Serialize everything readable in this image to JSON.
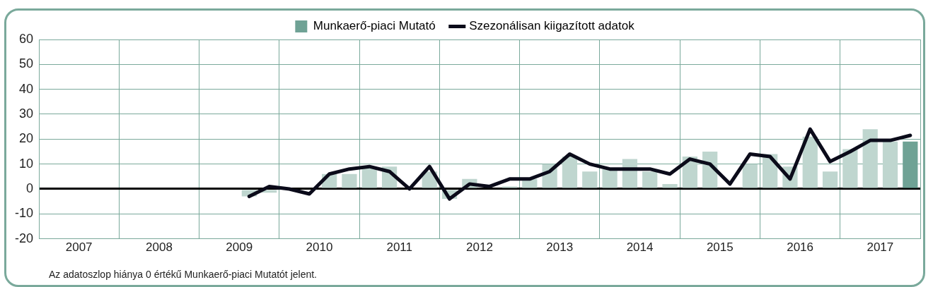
{
  "chart_data": {
    "type": "bar",
    "xlim": [
      2007,
      2018
    ],
    "xticks": [
      {
        "value": 2007,
        "label": null
      },
      {
        "value": 2007.5,
        "label": "2007"
      },
      {
        "value": 2008,
        "label": null
      },
      {
        "value": 2008.5,
        "label": "2008"
      },
      {
        "value": 2009,
        "label": null
      },
      {
        "value": 2009.5,
        "label": "2009"
      },
      {
        "value": 2010,
        "label": null
      },
      {
        "value": 2010.5,
        "label": "2010"
      },
      {
        "value": 2011,
        "label": null
      },
      {
        "value": 2011.5,
        "label": "2011"
      },
      {
        "value": 2012,
        "label": null
      },
      {
        "value": 2012.5,
        "label": "2012"
      },
      {
        "value": 2013,
        "label": null
      },
      {
        "value": 2013.5,
        "label": "2013"
      },
      {
        "value": 2014,
        "label": null
      },
      {
        "value": 2014.5,
        "label": "2014"
      },
      {
        "value": 2015,
        "label": null
      },
      {
        "value": 2015.5,
        "label": "2015"
      },
      {
        "value": 2016,
        "label": null
      },
      {
        "value": 2016.5,
        "label": "2016"
      },
      {
        "value": 2017,
        "label": null
      },
      {
        "value": 2017.5,
        "label": "2017"
      },
      {
        "value": 2018,
        "label": null
      }
    ],
    "ylim": [
      -20,
      60
    ],
    "yticks": [
      -20,
      -10,
      0,
      10,
      20,
      30,
      40,
      50,
      60
    ],
    "grid": true,
    "legend": "top",
    "series": [
      {
        "name": "Munkaerő-piaci Mutató",
        "color": "#6fa295",
        "x": [
          2009.625,
          2009.875,
          2010.125,
          2010.375,
          2010.625,
          2010.875,
          2011.125,
          2011.375,
          2011.625,
          2011.875,
          2012.125,
          2012.375,
          2012.625,
          2012.875,
          2013.125,
          2013.375,
          2013.625,
          2013.875,
          2014.125,
          2014.375,
          2014.625,
          2014.875,
          2015.125,
          2015.375,
          2015.625,
          2015.875,
          2016.125,
          2016.375,
          2016.625,
          2016.875,
          2017.125,
          2017.375,
          2017.625,
          2017.875
        ],
        "values": [
          -3,
          -1.5,
          0,
          0,
          6,
          6,
          9,
          9,
          0,
          7,
          -4,
          4,
          0,
          1,
          4,
          10,
          13,
          7,
          8,
          12,
          7,
          2,
          13,
          15,
          0,
          10,
          14,
          9,
          21,
          7,
          16,
          24,
          19,
          19
        ],
        "colors": [
          "#bfd6cf",
          "#bfd6cf",
          "#bfd6cf",
          "#bfd6cf",
          "#bfd6cf",
          "#bfd6cf",
          "#bfd6cf",
          "#bfd6cf",
          "#bfd6cf",
          "#bfd6cf",
          "#bfd6cf",
          "#bfd6cf",
          "#bfd6cf",
          "#bfd6cf",
          "#bfd6cf",
          "#bfd6cf",
          "#bfd6cf",
          "#bfd6cf",
          "#bfd6cf",
          "#bfd6cf",
          "#bfd6cf",
          "#bfd6cf",
          "#bfd6cf",
          "#bfd6cf",
          "#bfd6cf",
          "#bfd6cf",
          "#bfd6cf",
          "#bfd6cf",
          "#bfd6cf",
          "#bfd6cf",
          "#bfd6cf",
          "#bfd6cf",
          "#bfd6cf",
          "#6fa295"
        ]
      },
      {
        "type": "line",
        "name": "Szezonálisan kiigazított adatok",
        "color": "#0b0b1a",
        "marker": "none",
        "line_style": "solid",
        "x": [
          2009.625,
          2009.875,
          2010.125,
          2010.375,
          2010.625,
          2010.875,
          2011.125,
          2011.375,
          2011.625,
          2011.875,
          2012.125,
          2012.375,
          2012.625,
          2012.875,
          2013.125,
          2013.375,
          2013.625,
          2013.875,
          2014.125,
          2014.375,
          2014.625,
          2014.875,
          2015.125,
          2015.375,
          2015.625,
          2015.875,
          2016.125,
          2016.375,
          2016.625,
          2016.875,
          2017.125,
          2017.375,
          2017.625,
          2017.875
        ],
        "values": [
          -3,
          1,
          0,
          -2,
          6,
          8,
          9,
          7,
          0,
          9,
          -4,
          2,
          1,
          4,
          4,
          7,
          14,
          10,
          8,
          8,
          8,
          6,
          12,
          10,
          2,
          14,
          13,
          4,
          24,
          11,
          15,
          19.5,
          19.5,
          21.5
        ]
      }
    ],
    "annotations": [
      "Az adatoszlop hiánya 0 értékű Munkaerő-piaci Mutatót jelent."
    ]
  }
}
